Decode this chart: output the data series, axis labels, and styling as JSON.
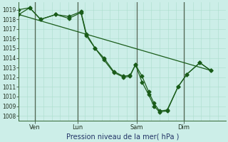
{
  "background_color": "#cceee8",
  "grid_color_h": "#aaddcc",
  "grid_color_v": "#aaddcc",
  "vline_color": "#556655",
  "line_color": "#1a5c1a",
  "title": "Pression niveau de la mer( hPa )",
  "ylabel_ticks": [
    1008,
    1009,
    1010,
    1011,
    1012,
    1013,
    1014,
    1015,
    1016,
    1017,
    1018,
    1019
  ],
  "ylim": [
    1007.5,
    1019.8
  ],
  "figsize": [
    3.2,
    2.0
  ],
  "dpi": 100,
  "xtick_labels": [
    "Ven",
    "Lun",
    "Sam",
    "Dim"
  ],
  "series1_x": [
    0,
    0.5,
    1.0,
    1.7,
    2.3,
    2.85,
    3.1,
    3.5,
    3.9,
    4.35,
    4.8,
    5.1,
    5.35,
    5.65,
    5.95,
    6.2,
    6.45,
    6.8,
    7.3,
    7.7,
    8.3,
    8.8
  ],
  "series1_y": [
    1019.0,
    1019.2,
    1018.0,
    1018.5,
    1018.3,
    1018.8,
    1016.5,
    1015.0,
    1014.0,
    1012.6,
    1012.1,
    1012.2,
    1013.3,
    1012.1,
    1010.5,
    1009.3,
    1008.5,
    1008.6,
    1011.0,
    1012.3,
    1013.5,
    1012.7
  ],
  "series2_x": [
    0,
    0.5,
    1.0,
    1.7,
    2.3,
    2.85,
    3.1,
    3.5,
    3.9,
    4.35,
    4.8,
    5.1,
    5.35,
    5.65,
    5.95,
    6.2,
    6.45,
    6.8,
    7.3,
    7.7,
    8.3,
    8.8
  ],
  "series2_y": [
    1018.5,
    1019.2,
    1018.0,
    1018.5,
    1018.1,
    1018.7,
    1016.3,
    1015.0,
    1013.8,
    1012.5,
    1012.0,
    1012.1,
    1013.3,
    1011.5,
    1010.2,
    1009.0,
    1008.4,
    1008.5,
    1011.0,
    1012.3,
    1013.5,
    1012.7
  ],
  "series3_x": [
    0,
    8.8
  ],
  "series3_y": [
    1018.5,
    1012.7
  ],
  "xlim": [
    0,
    9.5
  ],
  "vline_x": [
    0.75,
    2.7,
    5.4,
    7.55
  ],
  "xtick_x": [
    0.75,
    2.7,
    5.4,
    7.55
  ],
  "marker_size": 2.5,
  "linewidth": 0.9,
  "tick_fontsize": 5.5,
  "xlabel_fontsize": 7.0
}
